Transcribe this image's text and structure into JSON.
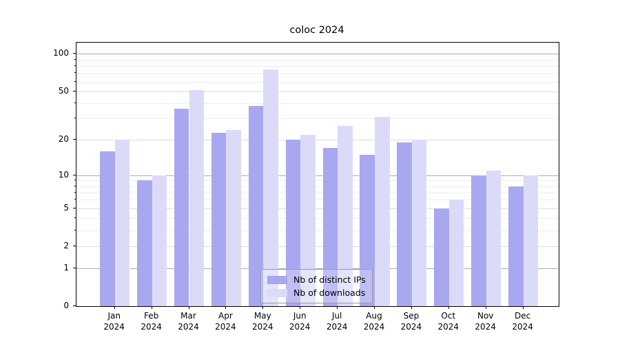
{
  "chart_data": {
    "type": "bar",
    "title": "coloc 2024",
    "categories": [
      "Jan 2024",
      "Feb 2024",
      "Mar 2024",
      "Apr 2024",
      "May 2024",
      "Jun 2024",
      "Jul 2024",
      "Aug 2024",
      "Sep 2024",
      "Oct 2024",
      "Nov 2024",
      "Dec 2024"
    ],
    "series": [
      {
        "name": "Nb of distinct IPs",
        "color": "#a8a8f0",
        "values": [
          16,
          9,
          36,
          23,
          38,
          20,
          17,
          15,
          19,
          5,
          10,
          8
        ]
      },
      {
        "name": "Nb of downloads",
        "color": "#dbdbf9",
        "values": [
          20,
          10,
          51,
          24,
          75,
          22,
          26,
          31,
          20,
          6,
          11,
          10
        ]
      }
    ],
    "xlabel": "",
    "ylabel": "",
    "yscale": "log1p",
    "ylim": [
      0,
      123
    ],
    "y_ticks": [
      100,
      50,
      20,
      10,
      5,
      2,
      1,
      0
    ],
    "y_minor_ticks": [
      3,
      4,
      6,
      7,
      8,
      9,
      30,
      40,
      60,
      70,
      80,
      90
    ],
    "grid": true,
    "legend_position": "lower center"
  },
  "colors": {
    "decade_gridline": "#ababab",
    "major_gridline": "#dcdcdc",
    "minor_gridline": "#ededed",
    "spine": "#000000",
    "background": "#ffffff"
  }
}
